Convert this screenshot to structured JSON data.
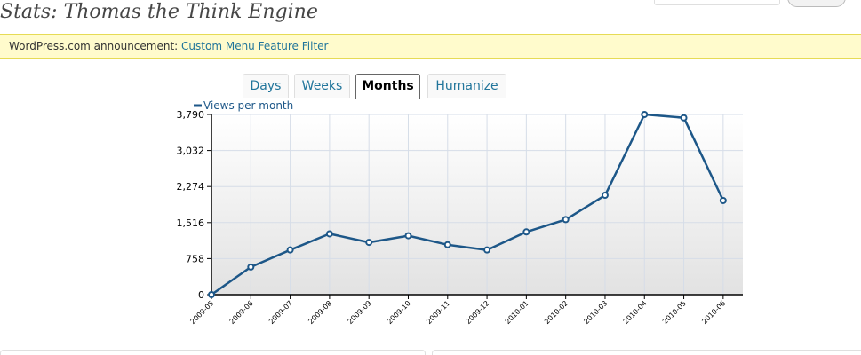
{
  "header": {
    "title": "Stats: Thomas the Think Engine"
  },
  "announcement": {
    "prefix": "WordPress.com announcement:",
    "link_label": "Custom Menu Feature Filter"
  },
  "tabs": [
    {
      "label": "Days",
      "active": false
    },
    {
      "label": "Weeks",
      "active": false
    },
    {
      "label": "Months",
      "active": true
    },
    {
      "label": "Humanize",
      "active": false
    }
  ],
  "chart_data": {
    "type": "line",
    "legend": "Views per month",
    "legend_position": "top-left",
    "categories": [
      "2009-05",
      "2009-06",
      "2009-07",
      "2009-08",
      "2009-09",
      "2009-10",
      "2009-11",
      "2009-12",
      "2010-01",
      "2010-02",
      "2010-03",
      "2010-04",
      "2010-05",
      "2010-06"
    ],
    "series": [
      {
        "name": "Views per month",
        "values": [
          0,
          580,
          940,
          1280,
          1100,
          1240,
          1050,
          940,
          1320,
          1580,
          2090,
          3790,
          3720,
          1980
        ]
      }
    ],
    "yticks": [
      "0",
      "758",
      "1,516",
      "2,274",
      "3,032",
      "3,790"
    ],
    "ylim": [
      0,
      3790
    ],
    "grid": true,
    "line_color": "#1d5788"
  }
}
